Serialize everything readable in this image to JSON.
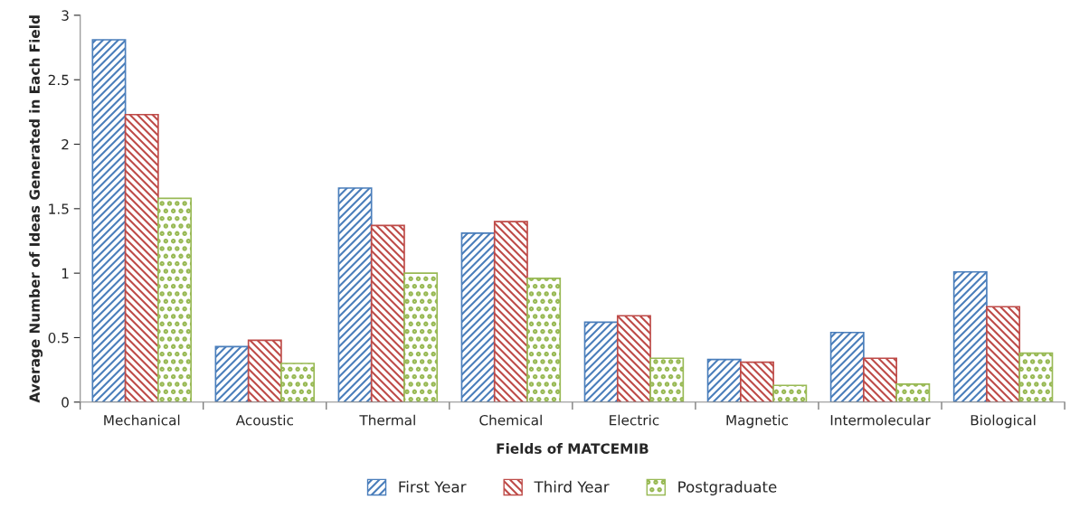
{
  "chart_data": {
    "type": "bar",
    "xlabel": "Fields of MATCEMIB",
    "ylabel": "Average Number of Ideas Generated in Each Field",
    "categories": [
      "Mechanical",
      "Acoustic",
      "Thermal",
      "Chemical",
      "Electric",
      "Magnetic",
      "Intermolecular",
      "Biological"
    ],
    "series": [
      {
        "name": "First Year",
        "color": "#4a7ebb",
        "values": [
          2.81,
          0.43,
          1.66,
          1.31,
          0.62,
          0.33,
          0.54,
          1.01
        ]
      },
      {
        "name": "Third Year",
        "color": "#be4b48",
        "values": [
          2.23,
          0.48,
          1.37,
          1.4,
          0.67,
          0.31,
          0.34,
          0.74
        ]
      },
      {
        "name": "Postgraduate",
        "color": "#98b954",
        "values": [
          1.58,
          0.3,
          1.0,
          0.96,
          0.34,
          0.13,
          0.14,
          0.38
        ]
      }
    ],
    "ylim": [
      0,
      3
    ],
    "yticks": [
      0,
      0.5,
      1,
      1.5,
      2,
      2.5,
      3
    ],
    "grid": false,
    "legend": "bottom"
  }
}
